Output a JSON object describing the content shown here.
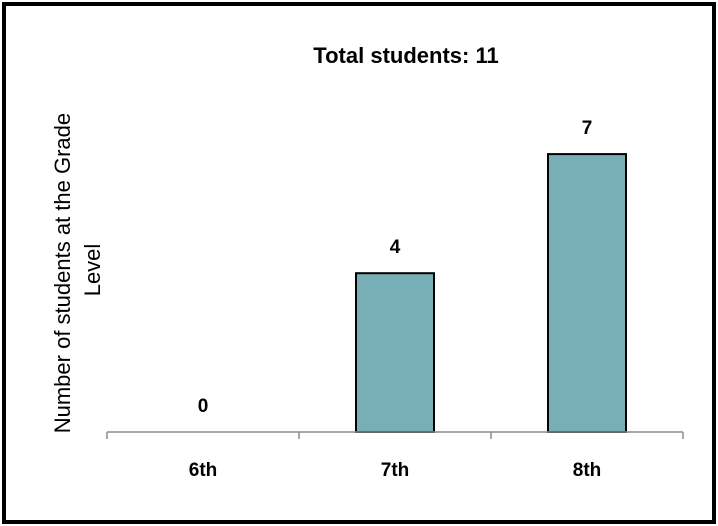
{
  "chart_data": {
    "type": "bar",
    "title": "Total students: 11",
    "xlabel": "",
    "ylabel": "Number of students at the Grade Level",
    "ylabel_lines": [
      "Number of students at the Grade",
      "Level"
    ],
    "categories": [
      "6th",
      "7th",
      "8th"
    ],
    "values": [
      0,
      4,
      7
    ],
    "data_labels": [
      "0",
      "4",
      "7"
    ],
    "ylim": [
      0,
      7
    ],
    "grid": false,
    "legend": "none",
    "bar_color": "#78afb6",
    "bar_edge_color": "#000000"
  }
}
